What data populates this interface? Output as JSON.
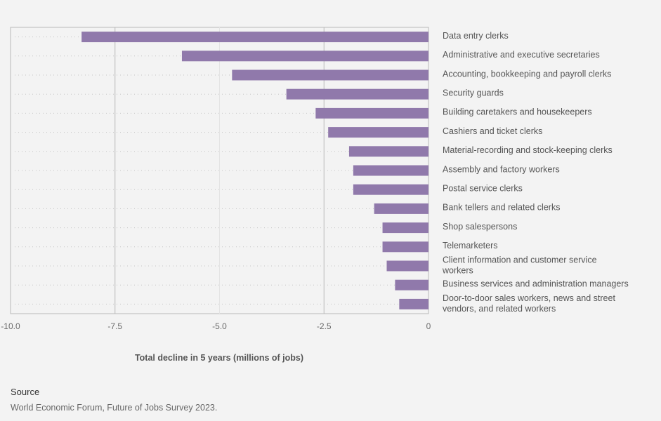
{
  "chart_data": {
    "type": "bar",
    "orientation": "horizontal",
    "categories": [
      "Data entry clerks",
      "Administrative and executive secretaries",
      "Accounting, bookkeeping and payroll clerks",
      "Security guards",
      "Building caretakers and housekeepers",
      "Cashiers and ticket clerks",
      "Material-recording and stock-keeping clerks",
      "Assembly and factory workers",
      "Postal service clerks",
      "Bank tellers and related clerks",
      "Shop salespersons",
      "Telemarketers",
      "Client information and customer service workers",
      "Business services and administration managers",
      "Door-to-door sales workers, news and street vendors, and related workers"
    ],
    "values": [
      -8.3,
      -5.9,
      -4.7,
      -3.4,
      -2.7,
      -2.4,
      -1.9,
      -1.8,
      -1.8,
      -1.3,
      -1.1,
      -1.1,
      -1.0,
      -0.8,
      -0.7
    ],
    "xlabel": "Total decline in 5 years (millions of jobs)",
    "xlim": [
      -10,
      0
    ],
    "xticks": [
      -10,
      -7.5,
      -5,
      -2.5,
      0
    ],
    "xtick_labels": [
      "-10.0",
      "-7.5",
      "-5.0",
      "-2.5",
      "0"
    ],
    "bar_color": "#9079ab",
    "grid": true
  },
  "source": {
    "heading": "Source",
    "text": "World Economic Forum, Future of Jobs Survey 2023."
  }
}
